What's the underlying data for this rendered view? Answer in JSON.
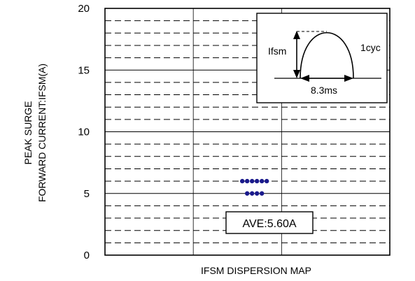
{
  "chart_data": {
    "type": "scatter",
    "title": "",
    "xlabel": "IFSM DISPERSION MAP",
    "ylabel_lines": [
      "PEAK SURGE",
      "FORWARD CURRENT:IFSM(A)"
    ],
    "ylim": [
      0,
      20
    ],
    "yticks": [
      0,
      5,
      10,
      15,
      20
    ],
    "grid": "solid major at 5A, dashed minor at 1A",
    "legend": "none",
    "points": [
      {
        "group": 1,
        "y": 6.0,
        "count": 6
      },
      {
        "group": 1,
        "y": 5.0,
        "count": 4
      }
    ],
    "point_color": "#1a1a8c",
    "annotation": {
      "text": "AVE:5.60A"
    },
    "inset": {
      "ifsm_label": "Ifsm",
      "cycle_label": "1cyc",
      "time_label": "8.3ms"
    }
  }
}
